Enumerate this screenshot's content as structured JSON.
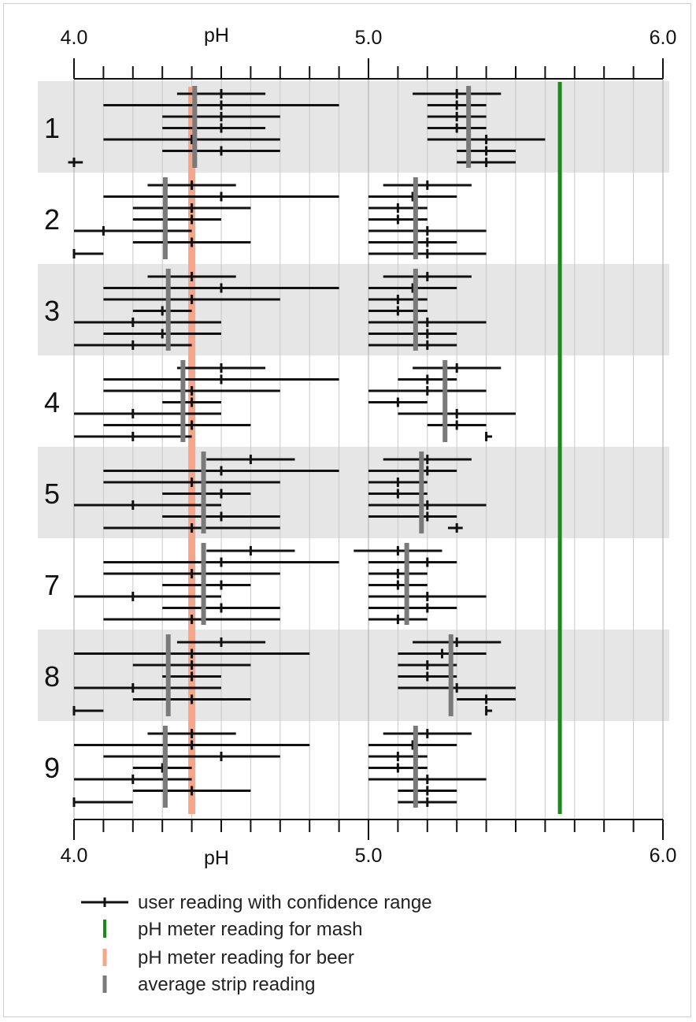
{
  "chart_data": {
    "type": "scatter",
    "xlabel": "pH",
    "xlim": [
      4.0,
      6.0
    ],
    "tick_labels": [
      "4.0",
      "5.0",
      "6.0"
    ],
    "grid": true,
    "legend_placement": "bottom",
    "legend": [
      {
        "key": "user",
        "label": "user reading with confidence range"
      },
      {
        "key": "mash",
        "label": "pH meter reading for mash"
      },
      {
        "key": "beer",
        "label": "pH meter reading for beer"
      },
      {
        "key": "avg",
        "label": "average strip reading"
      }
    ],
    "colors": {
      "user": "#111111",
      "mash": "#1a8a1a",
      "beer": "#f4a58a",
      "avg": "#7a7a7a",
      "band": "#e6e6e6",
      "grid": "#c8c8c8"
    },
    "reference_lines": {
      "mash_ph": 5.65,
      "beer_ph": 4.4
    },
    "groups": [
      {
        "label": "1",
        "readings": [
          [
            4.35,
            4.5,
            4.65
          ],
          [
            4.1,
            4.5,
            4.9
          ],
          [
            4.3,
            4.5,
            4.7
          ],
          [
            4.3,
            4.5,
            4.65
          ],
          [
            4.1,
            4.4,
            4.7
          ],
          [
            4.3,
            4.5,
            4.7
          ],
          [
            3.98,
            4.0,
            4.03
          ],
          [
            5.15,
            5.3,
            5.45
          ],
          [
            5.2,
            5.3,
            5.4
          ],
          [
            5.2,
            5.3,
            5.4
          ],
          [
            5.2,
            5.3,
            5.4
          ],
          [
            5.2,
            5.4,
            5.6
          ],
          [
            5.3,
            5.4,
            5.5
          ],
          [
            5.3,
            5.4,
            5.5
          ]
        ],
        "avg_low": 4.41,
        "avg_high": 5.34
      },
      {
        "label": "2",
        "readings": [
          [
            4.25,
            4.4,
            4.55
          ],
          [
            4.1,
            4.5,
            4.9
          ],
          [
            4.2,
            4.4,
            4.6
          ],
          [
            4.2,
            4.4,
            4.5
          ],
          [
            4.0,
            4.1,
            4.4
          ],
          [
            4.2,
            4.4,
            4.6
          ],
          [
            4.0,
            4.0,
            4.1
          ],
          [
            5.05,
            5.2,
            5.35
          ],
          [
            5.0,
            5.15,
            5.3
          ],
          [
            5.0,
            5.1,
            5.2
          ],
          [
            5.0,
            5.1,
            5.2
          ],
          [
            5.0,
            5.2,
            5.4
          ],
          [
            5.0,
            5.2,
            5.3
          ],
          [
            5.0,
            5.2,
            5.4
          ]
        ],
        "avg_low": 4.31,
        "avg_high": 5.16
      },
      {
        "label": "3",
        "readings": [
          [
            4.25,
            4.4,
            4.55
          ],
          [
            4.1,
            4.5,
            4.9
          ],
          [
            4.1,
            4.4,
            4.7
          ],
          [
            4.2,
            4.3,
            4.4
          ],
          [
            4.0,
            4.2,
            4.5
          ],
          [
            4.1,
            4.3,
            4.5
          ],
          [
            4.0,
            4.2,
            4.4
          ],
          [
            5.05,
            5.2,
            5.35
          ],
          [
            5.0,
            5.15,
            5.3
          ],
          [
            5.0,
            5.1,
            5.2
          ],
          [
            5.0,
            5.1,
            5.2
          ],
          [
            5.0,
            5.2,
            5.4
          ],
          [
            5.0,
            5.2,
            5.3
          ],
          [
            5.0,
            5.2,
            5.3
          ]
        ],
        "avg_low": 4.32,
        "avg_high": 5.16
      },
      {
        "label": "4",
        "readings": [
          [
            4.35,
            4.5,
            4.65
          ],
          [
            4.1,
            4.5,
            4.9
          ],
          [
            4.1,
            4.4,
            4.7
          ],
          [
            4.3,
            4.4,
            4.5
          ],
          [
            4.0,
            4.2,
            4.5
          ],
          [
            4.1,
            4.4,
            4.6
          ],
          [
            4.0,
            4.2,
            4.4
          ],
          [
            5.15,
            5.3,
            5.45
          ],
          [
            5.1,
            5.2,
            5.3
          ],
          [
            5.0,
            5.2,
            5.4
          ],
          [
            5.0,
            5.1,
            5.2
          ],
          [
            5.1,
            5.3,
            5.5
          ],
          [
            5.2,
            5.3,
            5.4
          ],
          [
            5.4,
            5.4,
            5.42
          ]
        ],
        "avg_low": 4.37,
        "avg_high": 5.26
      },
      {
        "label": "5",
        "readings": [
          [
            4.45,
            4.6,
            4.75
          ],
          [
            4.1,
            4.5,
            4.9
          ],
          [
            4.1,
            4.4,
            4.7
          ],
          [
            4.3,
            4.5,
            4.6
          ],
          [
            4.0,
            4.2,
            4.5
          ],
          [
            4.3,
            4.5,
            4.7
          ],
          [
            4.1,
            4.4,
            4.7
          ],
          [
            5.05,
            5.2,
            5.35
          ],
          [
            5.0,
            5.2,
            5.3
          ],
          [
            5.0,
            5.1,
            5.2
          ],
          [
            5.0,
            5.1,
            5.2
          ],
          [
            5.0,
            5.2,
            5.4
          ],
          [
            5.0,
            5.2,
            5.3
          ],
          [
            5.27,
            5.3,
            5.32
          ]
        ],
        "avg_low": 4.44,
        "avg_high": 5.18
      },
      {
        "label": "7",
        "readings": [
          [
            4.45,
            4.6,
            4.75
          ],
          [
            4.1,
            4.5,
            4.9
          ],
          [
            4.1,
            4.4,
            4.7
          ],
          [
            4.3,
            4.5,
            4.6
          ],
          [
            4.0,
            4.2,
            4.5
          ],
          [
            4.3,
            4.5,
            4.7
          ],
          [
            4.1,
            4.4,
            4.7
          ],
          [
            4.95,
            5.1,
            5.25
          ],
          [
            5.0,
            5.2,
            5.3
          ],
          [
            5.0,
            5.1,
            5.2
          ],
          [
            5.0,
            5.1,
            5.2
          ],
          [
            5.0,
            5.2,
            5.4
          ],
          [
            5.0,
            5.2,
            5.3
          ],
          [
            5.0,
            5.1,
            5.2
          ]
        ],
        "avg_low": 4.44,
        "avg_high": 5.13
      },
      {
        "label": "8",
        "readings": [
          [
            4.35,
            4.5,
            4.65
          ],
          [
            4.0,
            4.4,
            4.8
          ],
          [
            4.2,
            4.4,
            4.6
          ],
          [
            4.3,
            4.4,
            4.5
          ],
          [
            4.0,
            4.2,
            4.5
          ],
          [
            4.2,
            4.4,
            4.6
          ],
          [
            4.0,
            4.0,
            4.1
          ],
          [
            5.15,
            5.3,
            5.45
          ],
          [
            5.1,
            5.25,
            5.4
          ],
          [
            5.1,
            5.2,
            5.3
          ],
          [
            5.1,
            5.2,
            5.3
          ],
          [
            5.1,
            5.3,
            5.5
          ],
          [
            5.3,
            5.4,
            5.5
          ],
          [
            5.4,
            5.4,
            5.42
          ]
        ],
        "avg_low": 4.32,
        "avg_high": 5.28
      },
      {
        "label": "9",
        "readings": [
          [
            4.25,
            4.4,
            4.55
          ],
          [
            4.0,
            4.4,
            4.8
          ],
          [
            4.1,
            4.5,
            4.7
          ],
          [
            4.2,
            4.3,
            4.4
          ],
          [
            4.0,
            4.2,
            4.4
          ],
          [
            4.2,
            4.4,
            4.6
          ],
          [
            4.0,
            4.0,
            4.2
          ],
          [
            5.05,
            5.2,
            5.35
          ],
          [
            5.0,
            5.15,
            5.3
          ],
          [
            5.0,
            5.1,
            5.2
          ],
          [
            5.0,
            5.1,
            5.2
          ],
          [
            5.0,
            5.2,
            5.4
          ],
          [
            5.1,
            5.2,
            5.3
          ],
          [
            5.1,
            5.2,
            5.3
          ]
        ],
        "avg_low": 4.31,
        "avg_high": 5.16
      }
    ]
  }
}
